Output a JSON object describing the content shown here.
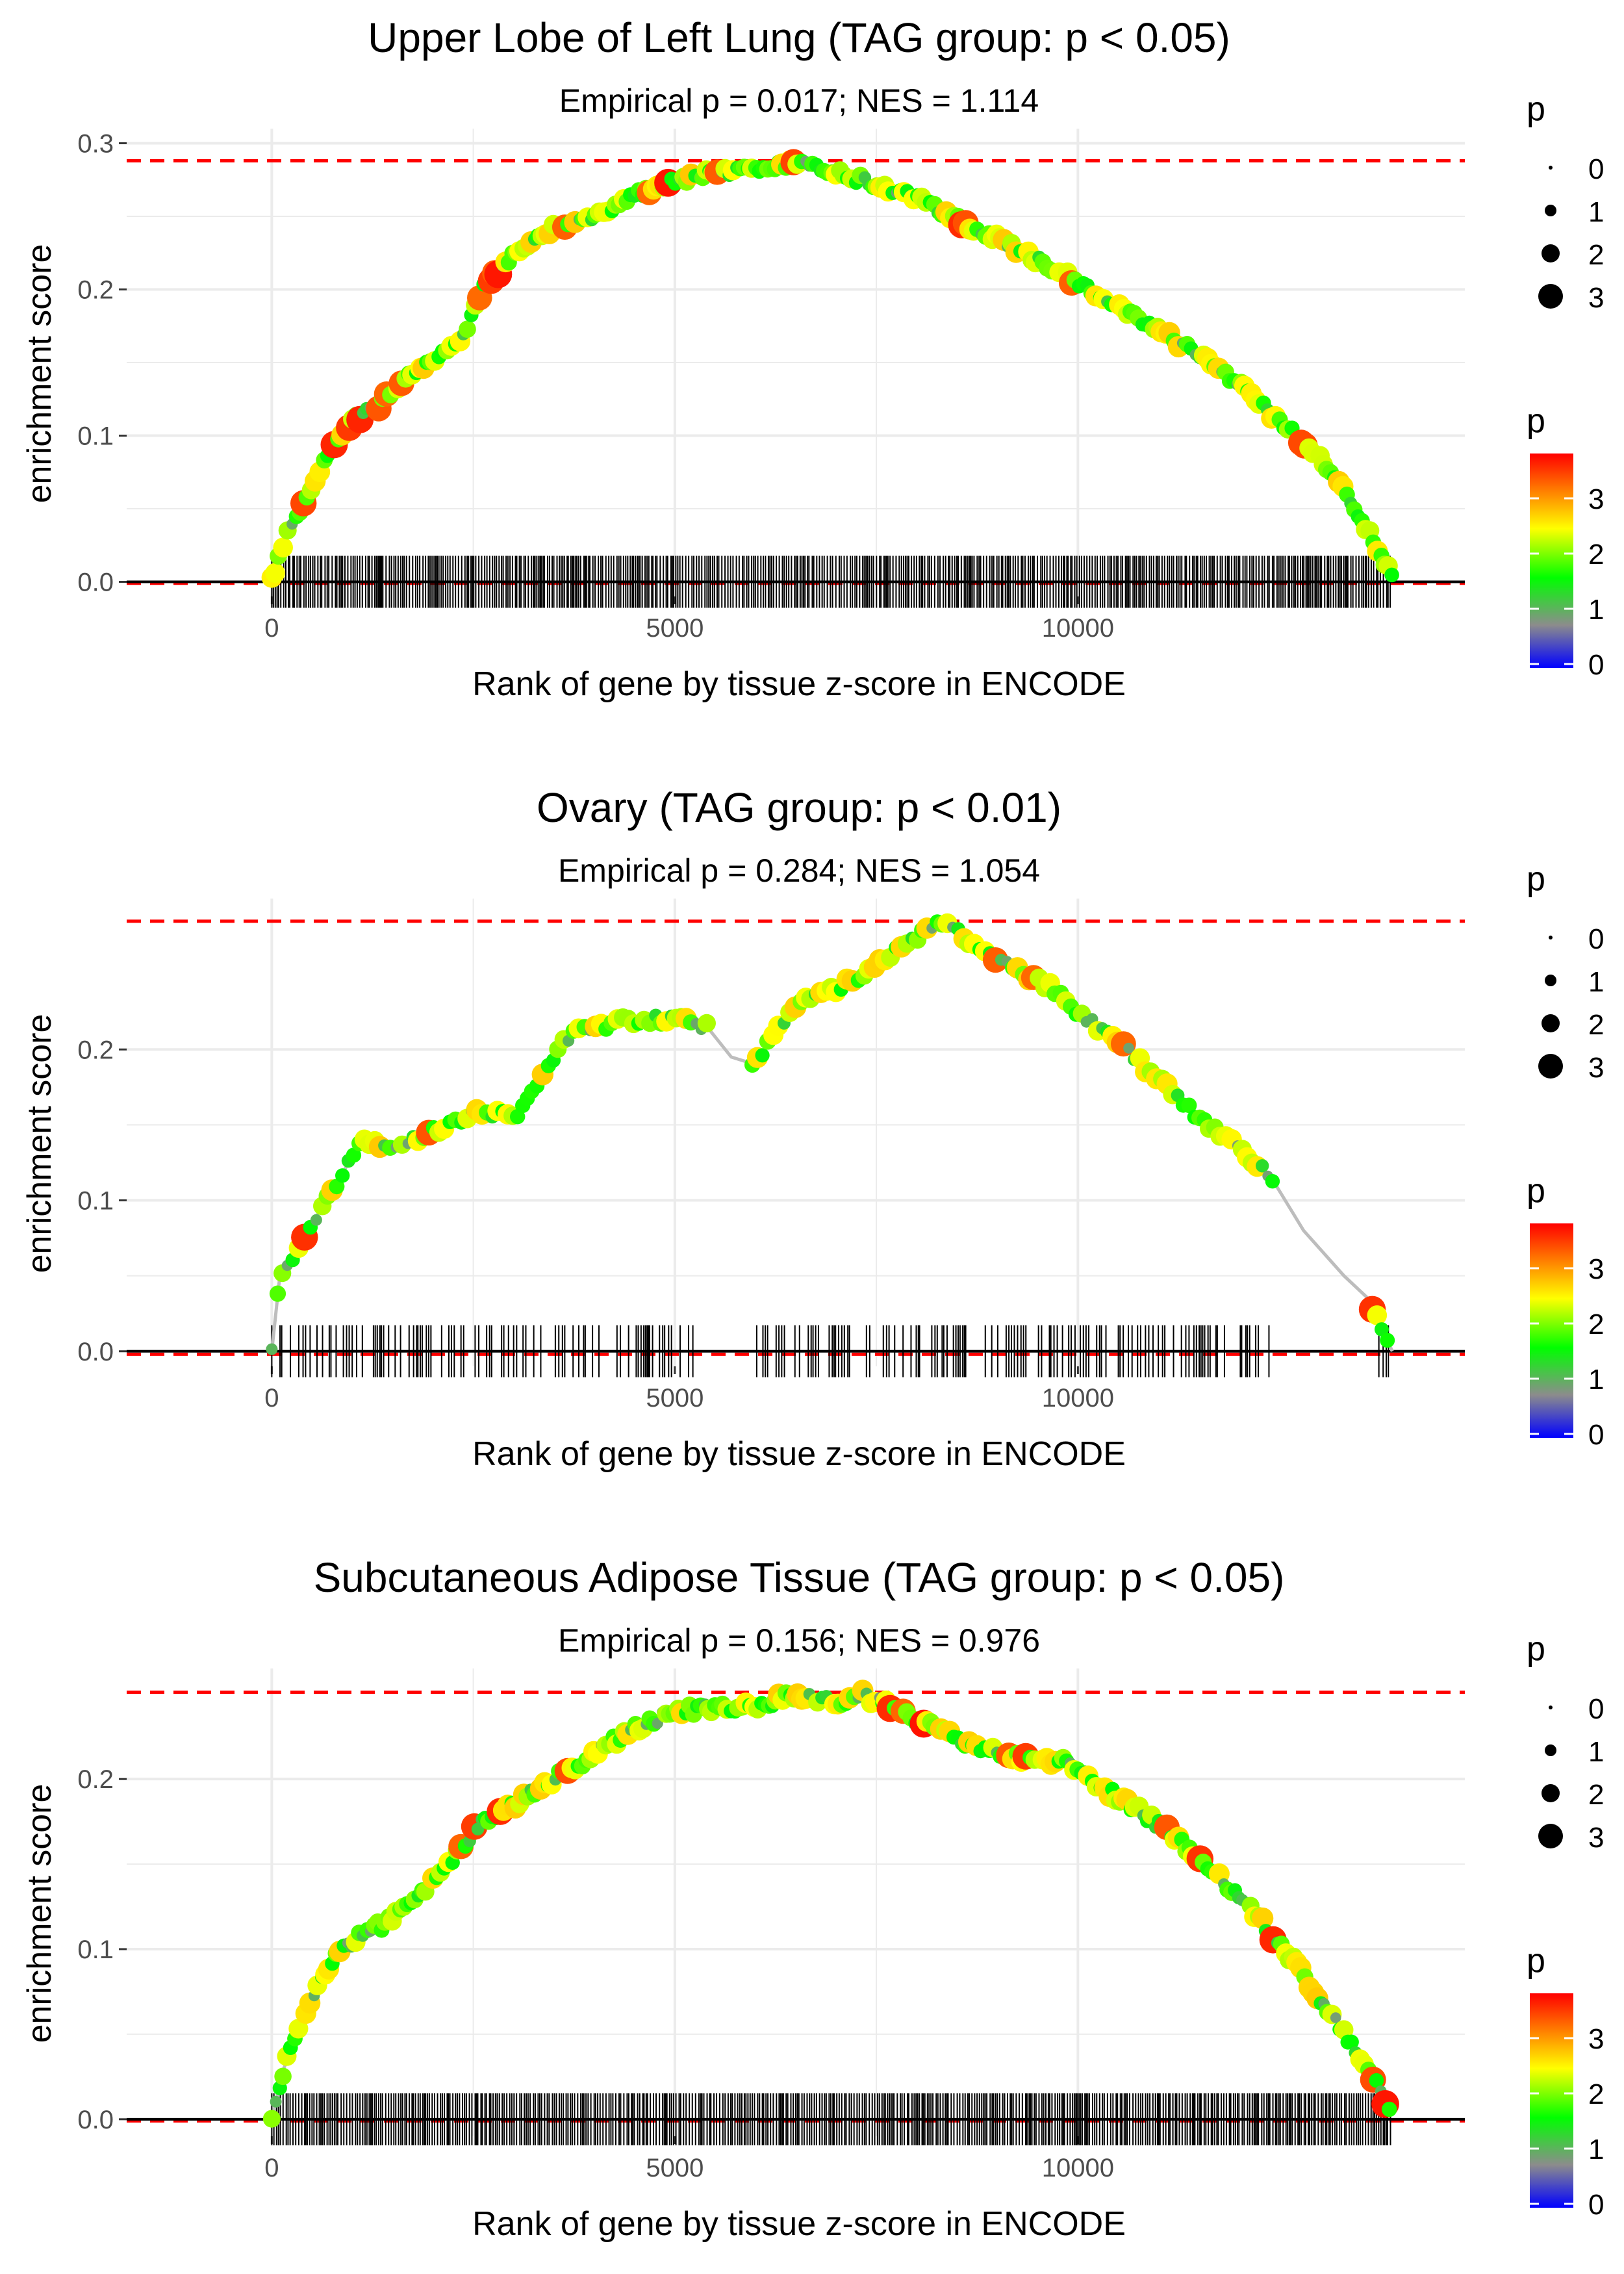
{
  "figure": {
    "xlabel": "Rank of gene by tissue z-score in ENCODE",
    "ylabel": "enrichment score",
    "legend_size_title": "p",
    "legend_size_labels": [
      "0",
      "1",
      "2",
      "3"
    ],
    "legend_color_title": "p",
    "legend_color_labels": [
      "0",
      "1",
      "2",
      "3"
    ],
    "colors": {
      "gradient": [
        "#0000ff",
        "#8c8c8c",
        "#00ff00",
        "#ffff00",
        "#ff0000"
      ],
      "threshold_line": "#ff0000",
      "rug": "#000000",
      "curve": "#bdbdbd",
      "grid": "#ebebeb"
    }
  },
  "chart_data": [
    {
      "type": "line",
      "title": "Upper Lobe of Left Lung (TAG group: p < 0.05)",
      "subtitle": "Empirical p = 0.017; NES = 1.114",
      "xlim": [
        -1800,
        14800
      ],
      "ylim": [
        -0.01,
        0.31
      ],
      "xticks": [
        0,
        5000,
        10000
      ],
      "xtick_labels": [
        "0",
        "5000",
        "10000"
      ],
      "yticks": [
        0.0,
        0.1,
        0.2,
        0.3
      ],
      "ytick_labels": [
        "0.0",
        "0.1",
        "0.2",
        "0.3"
      ],
      "max_es": 0.288,
      "min_es": -0.001,
      "rug_gap": 0,
      "rug_density": 1.0,
      "x_end": 13900,
      "curve": [
        [
          0,
          0
        ],
        [
          100,
          0.02
        ],
        [
          250,
          0.04
        ],
        [
          450,
          0.06
        ],
        [
          700,
          0.09
        ],
        [
          1000,
          0.11
        ],
        [
          1300,
          0.12
        ],
        [
          1700,
          0.14
        ],
        [
          2100,
          0.155
        ],
        [
          2400,
          0.17
        ],
        [
          2600,
          0.2
        ],
        [
          3000,
          0.225
        ],
        [
          3400,
          0.24
        ],
        [
          4000,
          0.25
        ],
        [
          4500,
          0.265
        ],
        [
          5000,
          0.275
        ],
        [
          5500,
          0.28
        ],
        [
          6000,
          0.283
        ],
        [
          6500,
          0.287
        ],
        [
          7000,
          0.28
        ],
        [
          7500,
          0.272
        ],
        [
          8000,
          0.262
        ],
        [
          8500,
          0.248
        ],
        [
          9000,
          0.235
        ],
        [
          9500,
          0.22
        ],
        [
          10000,
          0.205
        ],
        [
          10500,
          0.188
        ],
        [
          11000,
          0.172
        ],
        [
          11500,
          0.155
        ],
        [
          12000,
          0.135
        ],
        [
          12500,
          0.11
        ],
        [
          13000,
          0.085
        ],
        [
          13400,
          0.055
        ],
        [
          13700,
          0.025
        ],
        [
          13900,
          0.003
        ]
      ]
    },
    {
      "type": "line",
      "title": "Ovary (TAG group: p < 0.01)",
      "subtitle": "Empirical p = 0.284; NES = 1.054",
      "xlim": [
        -1800,
        14800
      ],
      "ylim": [
        -0.01,
        0.3
      ],
      "xticks": [
        0,
        5000,
        10000
      ],
      "xtick_labels": [
        "0",
        "5000",
        "10000"
      ],
      "yticks": [
        0.0,
        0.1,
        0.2
      ],
      "ytick_labels": [
        "0.0",
        "0.1",
        "0.2"
      ],
      "max_es": 0.285,
      "min_es": -0.002,
      "rug_gap": 1,
      "rug_density": 0.45,
      "x_end": 13900,
      "curve": [
        [
          0,
          0
        ],
        [
          100,
          0.05
        ],
        [
          300,
          0.065
        ],
        [
          500,
          0.085
        ],
        [
          800,
          0.11
        ],
        [
          1100,
          0.14
        ],
        [
          1400,
          0.135
        ],
        [
          1800,
          0.14
        ],
        [
          2200,
          0.15
        ],
        [
          2600,
          0.16
        ],
        [
          3000,
          0.155
        ],
        [
          3300,
          0.175
        ],
        [
          3500,
          0.195
        ],
        [
          3700,
          0.21
        ],
        [
          4000,
          0.215
        ],
        [
          4500,
          0.22
        ],
        [
          5000,
          0.22
        ],
        [
          5400,
          0.215
        ],
        [
          5700,
          0.195
        ],
        [
          6000,
          0.19
        ],
        [
          6300,
          0.215
        ],
        [
          6600,
          0.235
        ],
        [
          7000,
          0.24
        ],
        [
          7500,
          0.255
        ],
        [
          8000,
          0.275
        ],
        [
          8300,
          0.285
        ],
        [
          8700,
          0.27
        ],
        [
          9200,
          0.255
        ],
        [
          9700,
          0.24
        ],
        [
          10000,
          0.225
        ],
        [
          10500,
          0.205
        ],
        [
          11000,
          0.18
        ],
        [
          11500,
          0.155
        ],
        [
          12000,
          0.135
        ],
        [
          12400,
          0.115
        ],
        [
          12800,
          0.08
        ],
        [
          13300,
          0.05
        ],
        [
          13600,
          0.035
        ],
        [
          13900,
          0.0
        ]
      ]
    },
    {
      "type": "line",
      "title": "Subcutaneous Adipose Tissue (TAG group: p < 0.05)",
      "subtitle": "Empirical p = 0.156; NES = 0.976",
      "xlim": [
        -1800,
        14800
      ],
      "ylim": [
        -0.01,
        0.265
      ],
      "xticks": [
        0,
        5000,
        10000
      ],
      "xtick_labels": [
        "0",
        "5000",
        "10000"
      ],
      "yticks": [
        0.0,
        0.1,
        0.2
      ],
      "ytick_labels": [
        "0.0",
        "0.1",
        "0.2"
      ],
      "max_es": 0.251,
      "min_es": -0.001,
      "rug_gap": 0,
      "rug_density": 1.0,
      "x_end": 13900,
      "curve": [
        [
          0,
          0
        ],
        [
          150,
          0.03
        ],
        [
          400,
          0.06
        ],
        [
          700,
          0.09
        ],
        [
          1000,
          0.105
        ],
        [
          1400,
          0.115
        ],
        [
          1800,
          0.13
        ],
        [
          2200,
          0.15
        ],
        [
          2600,
          0.175
        ],
        [
          3000,
          0.185
        ],
        [
          3500,
          0.2
        ],
        [
          4000,
          0.215
        ],
        [
          4500,
          0.23
        ],
        [
          5000,
          0.24
        ],
        [
          5500,
          0.242
        ],
        [
          6000,
          0.243
        ],
        [
          6500,
          0.25
        ],
        [
          7000,
          0.245
        ],
        [
          7300,
          0.25
        ],
        [
          7800,
          0.24
        ],
        [
          8300,
          0.228
        ],
        [
          8800,
          0.218
        ],
        [
          9300,
          0.213
        ],
        [
          9800,
          0.21
        ],
        [
          10300,
          0.195
        ],
        [
          10800,
          0.18
        ],
        [
          11300,
          0.162
        ],
        [
          11800,
          0.14
        ],
        [
          12300,
          0.115
        ],
        [
          12800,
          0.085
        ],
        [
          13200,
          0.058
        ],
        [
          13600,
          0.03
        ],
        [
          13900,
          0.003
        ]
      ]
    }
  ]
}
